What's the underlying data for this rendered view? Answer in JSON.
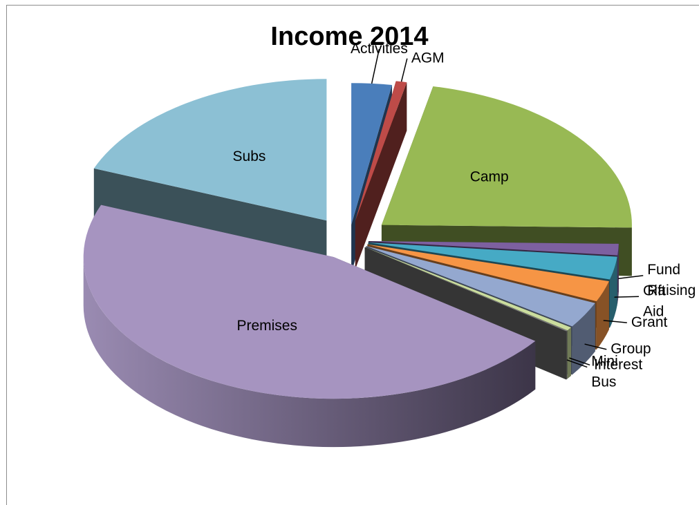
{
  "chart_data": {
    "type": "pie",
    "style": "3d-exploded",
    "title": "Income 2014",
    "legend": "none",
    "slices": [
      {
        "label": "Activities",
        "value": 2.6,
        "color": "#4a7ebb"
      },
      {
        "label": "AGM",
        "value": 0.7,
        "color": "#be4b48"
      },
      {
        "label": "Camp",
        "value": 22.0,
        "color": "#98b954"
      },
      {
        "label": "Fund Raising",
        "value": 1.3,
        "color": "#7d60a0"
      },
      {
        "label": "Gift Aid",
        "value": 2.6,
        "color": "#46aac5"
      },
      {
        "label": "Grant",
        "value": 2.4,
        "color": "#f69545"
      },
      {
        "label": "Group",
        "value": 3.0,
        "color": "#94a8cf"
      },
      {
        "label": "Interest",
        "value": 0.4,
        "color": "#cbdd9e"
      },
      {
        "label": "Mini Bus",
        "value": 0.1,
        "color": "#7f7f7f"
      },
      {
        "label": "Premises",
        "value": 45.9,
        "color": "#a694c0"
      },
      {
        "label": "Subs",
        "value": 19.0,
        "color": "#8cc0d4"
      }
    ]
  }
}
